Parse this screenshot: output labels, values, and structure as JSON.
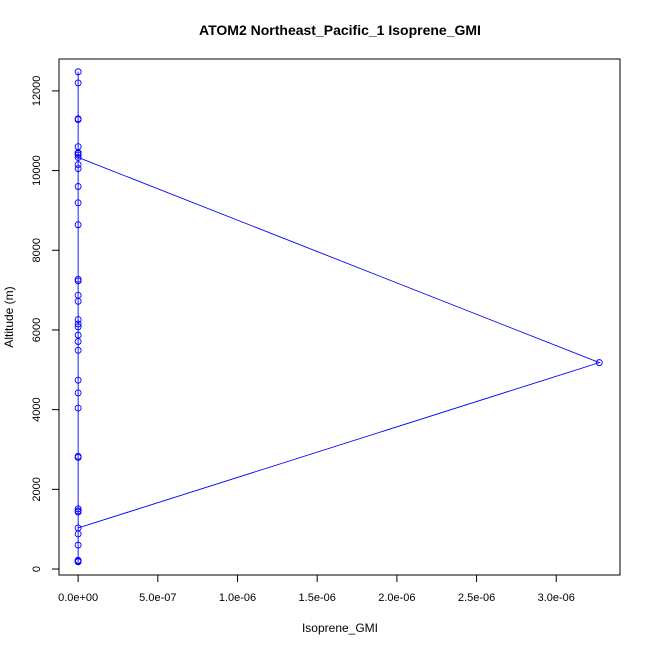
{
  "chart_data": {
    "type": "line",
    "title": "ATOM2 Northeast_Pacific_1 Isoprene_GMI",
    "xlabel": "Isoprene_GMI",
    "ylabel": "Altitude (m)",
    "xlim": [
      -1.2e-07,
      3.4e-06
    ],
    "ylim": [
      -150,
      12800
    ],
    "x_ticks": [
      0,
      5e-07,
      1e-06,
      1.5e-06,
      2e-06,
      2.5e-06,
      3e-06
    ],
    "x_tick_labels": [
      "0.0e+00",
      "5.0e-07",
      "1.0e-06",
      "1.5e-06",
      "2.0e-06",
      "2.5e-06",
      "3.0e-06"
    ],
    "y_ticks": [
      0,
      2000,
      4000,
      6000,
      8000,
      10000,
      12000
    ],
    "y_tick_labels": [
      "0",
      "2000",
      "4000",
      "6000",
      "8000",
      "10000",
      "12000"
    ],
    "grid": false,
    "legend": "none",
    "series": [
      {
        "color": "#0000ff",
        "marker": "open-circle",
        "points": [
          {
            "x": 0,
            "y": 200
          },
          {
            "x": 0,
            "y": 180
          },
          {
            "x": 0,
            "y": 220
          },
          {
            "x": 0,
            "y": 600
          },
          {
            "x": 0,
            "y": 880
          },
          {
            "x": 0,
            "y": 1030
          },
          {
            "x": 3.27e-06,
            "y": 5180
          },
          {
            "x": 0,
            "y": 10330
          },
          {
            "x": 0,
            "y": 10430
          },
          {
            "x": 0,
            "y": 10390
          },
          {
            "x": 0,
            "y": 10450
          },
          {
            "x": 0,
            "y": 10600
          },
          {
            "x": 0,
            "y": 11300
          },
          {
            "x": 0,
            "y": 11280
          },
          {
            "x": 0,
            "y": 12200
          },
          {
            "x": 0,
            "y": 12480
          },
          {
            "x": 0,
            "y": 10150
          },
          {
            "x": 0,
            "y": 10050
          },
          {
            "x": 0,
            "y": 9600
          },
          {
            "x": 0,
            "y": 9190
          },
          {
            "x": 0,
            "y": 8640
          },
          {
            "x": 0,
            "y": 7270
          },
          {
            "x": 0,
            "y": 7230
          },
          {
            "x": 0,
            "y": 6870
          },
          {
            "x": 0,
            "y": 6720
          },
          {
            "x": 0,
            "y": 6260
          },
          {
            "x": 0,
            "y": 6150
          },
          {
            "x": 0,
            "y": 6080
          },
          {
            "x": 0,
            "y": 5870
          },
          {
            "x": 0,
            "y": 5710
          },
          {
            "x": 0,
            "y": 5490
          },
          {
            "x": 0,
            "y": 4740
          },
          {
            "x": 0,
            "y": 4420
          },
          {
            "x": 0,
            "y": 4040
          },
          {
            "x": 0,
            "y": 2830
          },
          {
            "x": 0,
            "y": 2800
          },
          {
            "x": 0,
            "y": 1510
          },
          {
            "x": 0,
            "y": 1460
          },
          {
            "x": 0,
            "y": 1430
          },
          {
            "x": 0,
            "y": 200
          }
        ]
      }
    ]
  }
}
